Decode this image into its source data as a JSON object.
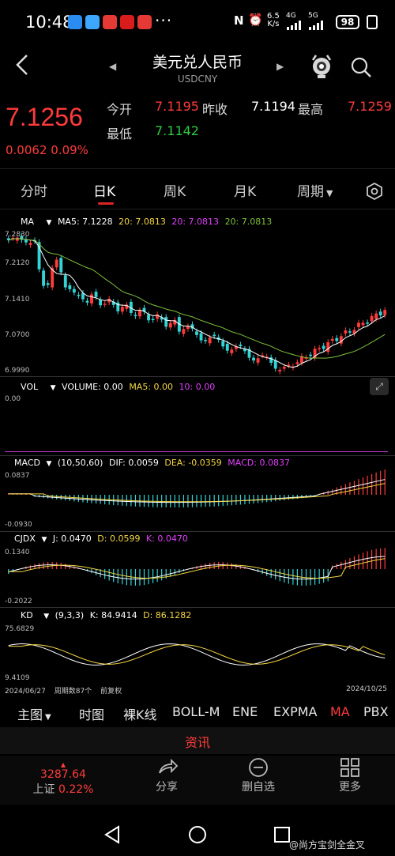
{
  "status_bar": {
    "time": "10:48",
    "dots": "···",
    "speed": "6.5",
    "speed_unit": "K/s",
    "net1": "4G",
    "net2": "5G",
    "battery": "98"
  },
  "header": {
    "title": "美元兑人民币",
    "subtitle": "USDCNY"
  },
  "quote": {
    "price": "7.1256",
    "change": "0.0062",
    "change_pct": "0.09%",
    "open_label": "今开",
    "open": "7.1195",
    "prev_label": "昨收",
    "prev": "7.1194",
    "high_label": "最高",
    "high": "7.1259",
    "low_label": "最低",
    "low": "7.1142"
  },
  "tabs": [
    "分时",
    "日K",
    "周K",
    "月K",
    "周期"
  ],
  "active_tab": "日K",
  "indicators": {
    "ma": {
      "name": "MA",
      "ma5": "MA5: 7.1228",
      "ma20a": "20: 7.0813",
      "ma20b": "20: 7.0813",
      "ma20c": "20: 7.0813"
    },
    "ma_axis": [
      "7.2830",
      "7.2120",
      "7.1410",
      "7.0700",
      "6.9990"
    ],
    "vol": {
      "name": "VOL",
      "volume": "VOLUME: 0.00",
      "ma5": "MA5: 0.00",
      "ma10": "10: 0.00"
    },
    "vol_axis": [
      "0.00"
    ],
    "macd": {
      "name": "MACD",
      "params": "(10,50,60)",
      "dif": "DIF: 0.0059",
      "dea": "DEA: -0.0359",
      "macd": "MACD: 0.0837"
    },
    "macd_axis": [
      "0.0837",
      "-0.0930"
    ],
    "cjdx": {
      "name": "CJDX",
      "j": "J: 0.0470",
      "d": "D: 0.0599",
      "k": "K: 0.0470"
    },
    "cjdx_axis": [
      "0.1340",
      "-0.2022"
    ],
    "kd": {
      "name": "KD",
      "params": "(9,3,3)",
      "k": "K: 84.9414",
      "d": "D: 86.1282"
    },
    "kd_axis": [
      "75.6829",
      "9.4109"
    ]
  },
  "footer_info": {
    "start_date": "2024/06/27",
    "period": "周期数87个",
    "adjust": "前复权",
    "end_date": "2024/10/25"
  },
  "sub_tabs": [
    "主图",
    "时图",
    "裸K线",
    "BOLL-M",
    "ENE",
    "EXPMA",
    "MA",
    "PBX"
  ],
  "active_sub_tab": "MA",
  "news_label": "资讯",
  "bottom_bar": {
    "index_value": "3287.64",
    "index_name": "上证",
    "index_change": "0.22%",
    "share": "分享",
    "delete": "删自选",
    "more": "更多"
  },
  "watermark": "@尚方宝剑全金叉",
  "colors": {
    "up": "#ff3b3b",
    "down": "#33d3d6",
    "ma5": "#ffffff",
    "ma20": "#7fc23a",
    "accent": "#e02424"
  }
}
